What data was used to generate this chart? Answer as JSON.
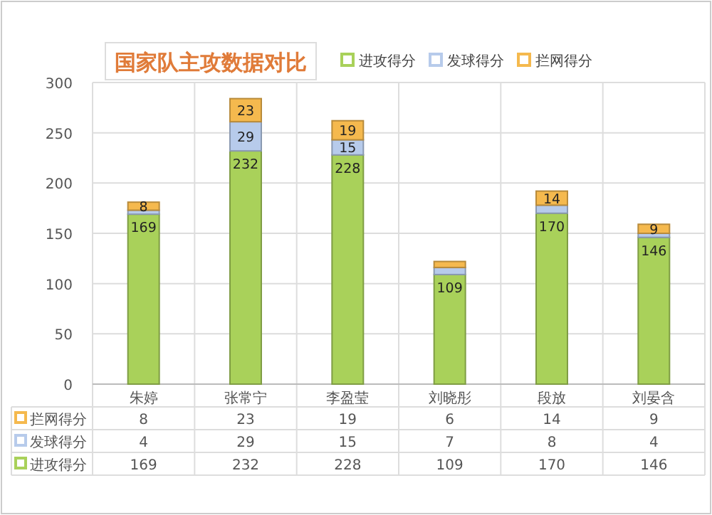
{
  "chart_data": {
    "type": "bar",
    "title": "国家队主攻数据对比",
    "categories": [
      "朱婷",
      "张常宁",
      "李盈莹",
      "刘晓彤",
      "段放",
      "刘晏含"
    ],
    "stacked": true,
    "data_labels": true,
    "grid": true,
    "legend": "top",
    "ylim": [
      0,
      300
    ],
    "yticks": [
      0,
      50,
      100,
      150,
      200,
      250,
      300
    ],
    "series": [
      {
        "name": "进攻得分",
        "color": "#a9d15a",
        "values": [
          169,
          232,
          228,
          109,
          170,
          146
        ]
      },
      {
        "name": "发球得分",
        "color": "#b7cbeb",
        "values": [
          4,
          29,
          15,
          7,
          8,
          4
        ]
      },
      {
        "name": "拦网得分",
        "color": "#f5b94e",
        "values": [
          8,
          23,
          19,
          6,
          14,
          9
        ]
      }
    ],
    "annotations": [
      {
        "text": "169",
        "x": "朱婷",
        "y": 169
      },
      {
        "text": "8",
        "x": "朱婷",
        "y": 181
      },
      {
        "text": "232",
        "x": "张常宁",
        "y": 232
      },
      {
        "text": "29",
        "x": "张常宁",
        "y": 261
      },
      {
        "text": "23",
        "x": "张常宁",
        "y": 284
      },
      {
        "text": "228",
        "x": "李盈莹",
        "y": 228
      },
      {
        "text": "15",
        "x": "李盈莹",
        "y": 243
      },
      {
        "text": "19",
        "x": "李盈莹",
        "y": 262
      },
      {
        "text": "109",
        "x": "刘晓彤",
        "y": 109
      },
      {
        "text": "170",
        "x": "段放",
        "y": 170
      },
      {
        "text": "14",
        "x": "段放",
        "y": 192
      },
      {
        "text": "146",
        "x": "刘晏含",
        "y": 146
      },
      {
        "text": "9",
        "x": "刘晏含",
        "y": 159
      }
    ]
  }
}
